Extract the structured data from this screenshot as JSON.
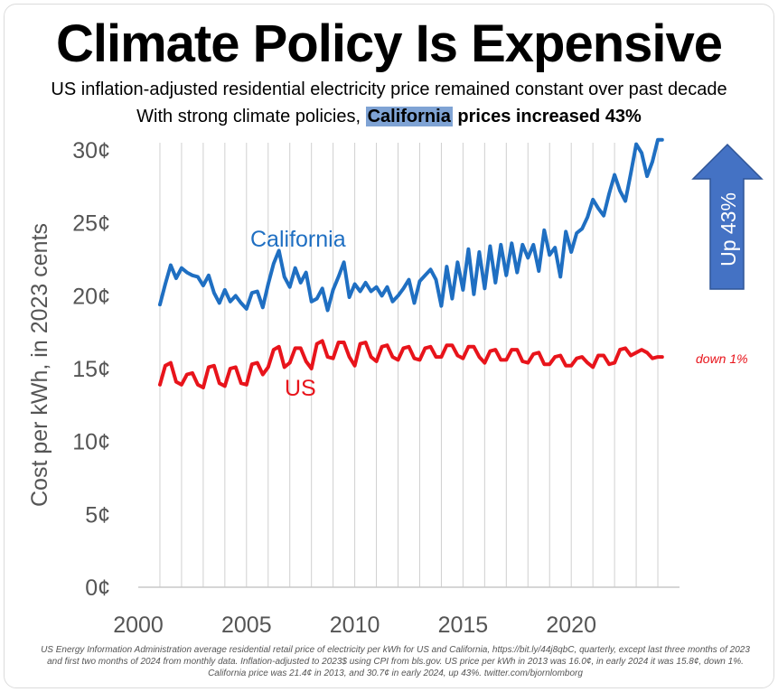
{
  "title": "Climate Policy Is Expensive",
  "subtitle_line1": "US inflation-adjusted residential electricity price remained constant over past decade",
  "subtitle_line2_pre": "With strong climate policies, ",
  "subtitle_line2_highlight": "California",
  "subtitle_line2_post": " prices increased 43%",
  "footnote": "US Energy Information Administration average residential retail price of electricity per kWh for US and California, https://bit.ly/44j8qbC, quarterly, except last three months of 2023 and first two months of 2024 from monthly data. Inflation-adjusted to 2023$ using CPI from bls.gov. US price per kWh in 2013 was 16.0¢, in early 2024 it was 15.8¢, down 1%. California price was 21.4¢ in 2013, and 30.7¢ in early 2024, up 43%. twitter.com/bjornlomborg",
  "colors": {
    "california": "#1f6fc2",
    "us": "#e8141b",
    "arrow": "#4472c4",
    "grid": "#d0d0d0",
    "axis_text": "#555555"
  },
  "chart_data": {
    "type": "line",
    "title": "Climate Policy Is Expensive",
    "xlabel": "",
    "ylabel": "Cost per kWh, in 2023 cents",
    "xlim": [
      2000,
      2025
    ],
    "ylim": [
      0,
      30.5
    ],
    "x_ticks": [
      2000,
      2005,
      2010,
      2015,
      2020
    ],
    "x_tick_labels": [
      "2000",
      "2005",
      "2010",
      "2015",
      "2020"
    ],
    "y_ticks": [
      0,
      5,
      10,
      15,
      20,
      25,
      30
    ],
    "y_tick_labels": [
      "0¢",
      "5¢",
      "10¢",
      "15¢",
      "20¢",
      "25¢",
      "30¢"
    ],
    "x_grid": true,
    "y_grid": false,
    "series": [
      {
        "name": "California",
        "label": "California",
        "x": [
          2001.0,
          2001.25,
          2001.5,
          2001.75,
          2002.0,
          2002.25,
          2002.5,
          2002.75,
          2003.0,
          2003.25,
          2003.5,
          2003.75,
          2004.0,
          2004.25,
          2004.5,
          2004.75,
          2005.0,
          2005.25,
          2005.5,
          2005.75,
          2006.0,
          2006.25,
          2006.5,
          2006.75,
          2007.0,
          2007.25,
          2007.5,
          2007.75,
          2008.0,
          2008.25,
          2008.5,
          2008.75,
          2009.0,
          2009.25,
          2009.5,
          2009.75,
          2010.0,
          2010.25,
          2010.5,
          2010.75,
          2011.0,
          2011.25,
          2011.5,
          2011.75,
          2012.0,
          2012.25,
          2012.5,
          2012.75,
          2013.0,
          2013.25,
          2013.5,
          2013.75,
          2014.0,
          2014.25,
          2014.5,
          2014.75,
          2015.0,
          2015.25,
          2015.5,
          2015.75,
          2016.0,
          2016.25,
          2016.5,
          2016.75,
          2017.0,
          2017.25,
          2017.5,
          2017.75,
          2018.0,
          2018.25,
          2018.5,
          2018.75,
          2019.0,
          2019.25,
          2019.5,
          2019.75,
          2020.0,
          2020.25,
          2020.5,
          2020.75,
          2021.0,
          2021.25,
          2021.5,
          2021.75,
          2022.0,
          2022.25,
          2022.5,
          2022.75,
          2023.0,
          2023.25,
          2023.5,
          2023.75,
          2024.0,
          2024.2
        ],
        "values": [
          19.4,
          20.8,
          22.1,
          21.2,
          21.9,
          21.6,
          21.4,
          21.3,
          20.7,
          21.4,
          20.2,
          19.5,
          20.4,
          19.6,
          20.0,
          19.5,
          19.1,
          20.2,
          20.3,
          19.2,
          20.8,
          22.2,
          23.1,
          21.3,
          20.6,
          21.9,
          20.9,
          21.6,
          19.6,
          19.8,
          20.5,
          19.0,
          20.4,
          21.3,
          22.3,
          19.9,
          20.8,
          20.3,
          20.9,
          20.3,
          20.6,
          20.0,
          20.6,
          19.6,
          20.0,
          20.5,
          21.1,
          19.5,
          21.0,
          21.4,
          21.8,
          21.1,
          19.3,
          22.0,
          19.8,
          22.3,
          20.4,
          23.2,
          20.1,
          23.0,
          20.5,
          23.4,
          20.9,
          23.5,
          21.4,
          23.6,
          21.6,
          23.5,
          22.6,
          23.5,
          21.7,
          24.5,
          22.8,
          23.3,
          21.3,
          24.4,
          23.0,
          24.3,
          24.6,
          25.4,
          26.6,
          26.0,
          25.5,
          27.0,
          28.3,
          27.2,
          26.5,
          28.4,
          30.4,
          29.8,
          28.2,
          29.2,
          30.7,
          30.7
        ]
      },
      {
        "name": "US",
        "label": "US",
        "end_annotation": "down 1%",
        "x": [
          2001.0,
          2001.25,
          2001.5,
          2001.75,
          2002.0,
          2002.25,
          2002.5,
          2002.75,
          2003.0,
          2003.25,
          2003.5,
          2003.75,
          2004.0,
          2004.25,
          2004.5,
          2004.75,
          2005.0,
          2005.25,
          2005.5,
          2005.75,
          2006.0,
          2006.25,
          2006.5,
          2006.75,
          2007.0,
          2007.25,
          2007.5,
          2007.75,
          2008.0,
          2008.25,
          2008.5,
          2008.75,
          2009.0,
          2009.25,
          2009.5,
          2009.75,
          2010.0,
          2010.25,
          2010.5,
          2010.75,
          2011.0,
          2011.25,
          2011.5,
          2011.75,
          2012.0,
          2012.25,
          2012.5,
          2012.75,
          2013.0,
          2013.25,
          2013.5,
          2013.75,
          2014.0,
          2014.25,
          2014.5,
          2014.75,
          2015.0,
          2015.25,
          2015.5,
          2015.75,
          2016.0,
          2016.25,
          2016.5,
          2016.75,
          2017.0,
          2017.25,
          2017.5,
          2017.75,
          2018.0,
          2018.25,
          2018.5,
          2018.75,
          2019.0,
          2019.25,
          2019.5,
          2019.75,
          2020.0,
          2020.25,
          2020.5,
          2020.75,
          2021.0,
          2021.25,
          2021.5,
          2021.75,
          2022.0,
          2022.25,
          2022.5,
          2022.75,
          2023.0,
          2023.25,
          2023.5,
          2023.75,
          2024.0,
          2024.2
        ],
        "values": [
          13.9,
          15.2,
          15.4,
          14.1,
          13.9,
          14.6,
          14.7,
          13.9,
          13.7,
          15.1,
          15.2,
          14.0,
          13.8,
          15.0,
          15.1,
          14.0,
          13.9,
          15.3,
          15.4,
          14.6,
          15.1,
          16.3,
          16.5,
          15.1,
          15.4,
          16.4,
          16.4,
          15.5,
          15.0,
          16.7,
          16.9,
          15.8,
          15.7,
          16.8,
          16.8,
          15.8,
          15.2,
          16.7,
          16.8,
          15.8,
          15.5,
          16.5,
          16.6,
          15.8,
          15.6,
          16.4,
          16.5,
          15.7,
          15.6,
          16.4,
          16.5,
          15.8,
          15.8,
          16.6,
          16.6,
          15.9,
          15.7,
          16.5,
          16.5,
          15.8,
          15.4,
          16.2,
          16.3,
          15.6,
          15.6,
          16.3,
          16.3,
          15.5,
          15.4,
          16.0,
          16.1,
          15.3,
          15.3,
          15.8,
          15.9,
          15.2,
          15.2,
          15.7,
          15.8,
          15.4,
          15.1,
          15.9,
          15.9,
          15.3,
          15.4,
          16.3,
          16.4,
          15.9,
          16.1,
          16.3,
          16.1,
          15.7,
          15.8,
          15.8
        ]
      }
    ],
    "arrow_annotation": "Up 43%"
  }
}
